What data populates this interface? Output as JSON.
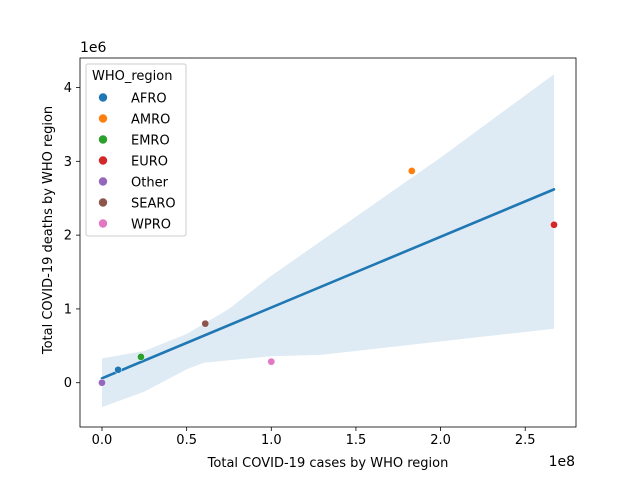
{
  "chart_data": {
    "type": "scatter",
    "title": "",
    "xlabel": "Total COVID-19 cases by WHO region",
    "ylabel": "Total COVID-19 deaths by WHO region",
    "x_offset_label": "1e8",
    "y_offset_label": "1e6",
    "xlim": [
      -0.13,
      2.8
    ],
    "ylim": [
      -0.6,
      4.4
    ],
    "x_ticks": [
      0.0,
      0.5,
      1.0,
      1.5,
      2.0,
      2.5
    ],
    "x_tick_labels": [
      "0.0",
      "0.5",
      "1.0",
      "1.5",
      "2.0",
      "2.5"
    ],
    "y_ticks": [
      0,
      1,
      2,
      3,
      4
    ],
    "y_tick_labels": [
      "0",
      "1",
      "2",
      "3",
      "4"
    ],
    "grid": false,
    "legend": {
      "title": "WHO_region",
      "placement": "top-left"
    },
    "series": [
      {
        "name": "AFRO",
        "color": "#1f77b4",
        "points": [
          [
            0.095,
            0.175
          ]
        ]
      },
      {
        "name": "AMRO",
        "color": "#ff7f0e",
        "points": [
          [
            1.83,
            2.87
          ]
        ]
      },
      {
        "name": "EMRO",
        "color": "#2ca02c",
        "points": [
          [
            0.23,
            0.35
          ]
        ]
      },
      {
        "name": "EURO",
        "color": "#d62728",
        "points": [
          [
            2.67,
            2.14
          ]
        ]
      },
      {
        "name": "Other",
        "color": "#9467bd",
        "points": [
          [
            0.0,
            0.0
          ]
        ]
      },
      {
        "name": "SEARO",
        "color": "#8c564b",
        "points": [
          [
            0.61,
            0.8
          ]
        ]
      },
      {
        "name": "WPRO",
        "color": "#e377c2",
        "points": [
          [
            1.0,
            0.285
          ]
        ]
      }
    ],
    "regression": {
      "color": "#1f77b4",
      "line": [
        [
          0.0,
          0.06
        ],
        [
          2.67,
          2.62
        ]
      ],
      "ci_color": "#1f77b4",
      "ci_upper": [
        [
          0.0,
          0.33
        ],
        [
          0.25,
          0.43
        ],
        [
          0.5,
          0.66
        ],
        [
          0.75,
          1.0
        ],
        [
          1.0,
          1.45
        ],
        [
          1.5,
          2.25
        ],
        [
          2.0,
          3.05
        ],
        [
          2.67,
          4.18
        ]
      ],
      "ci_lower": [
        [
          0.0,
          -0.33
        ],
        [
          0.25,
          -0.12
        ],
        [
          0.5,
          0.18
        ],
        [
          0.6,
          0.27
        ],
        [
          1.0,
          0.36
        ],
        [
          1.3,
          0.38
        ],
        [
          2.0,
          0.56
        ],
        [
          2.67,
          0.73
        ]
      ]
    }
  }
}
